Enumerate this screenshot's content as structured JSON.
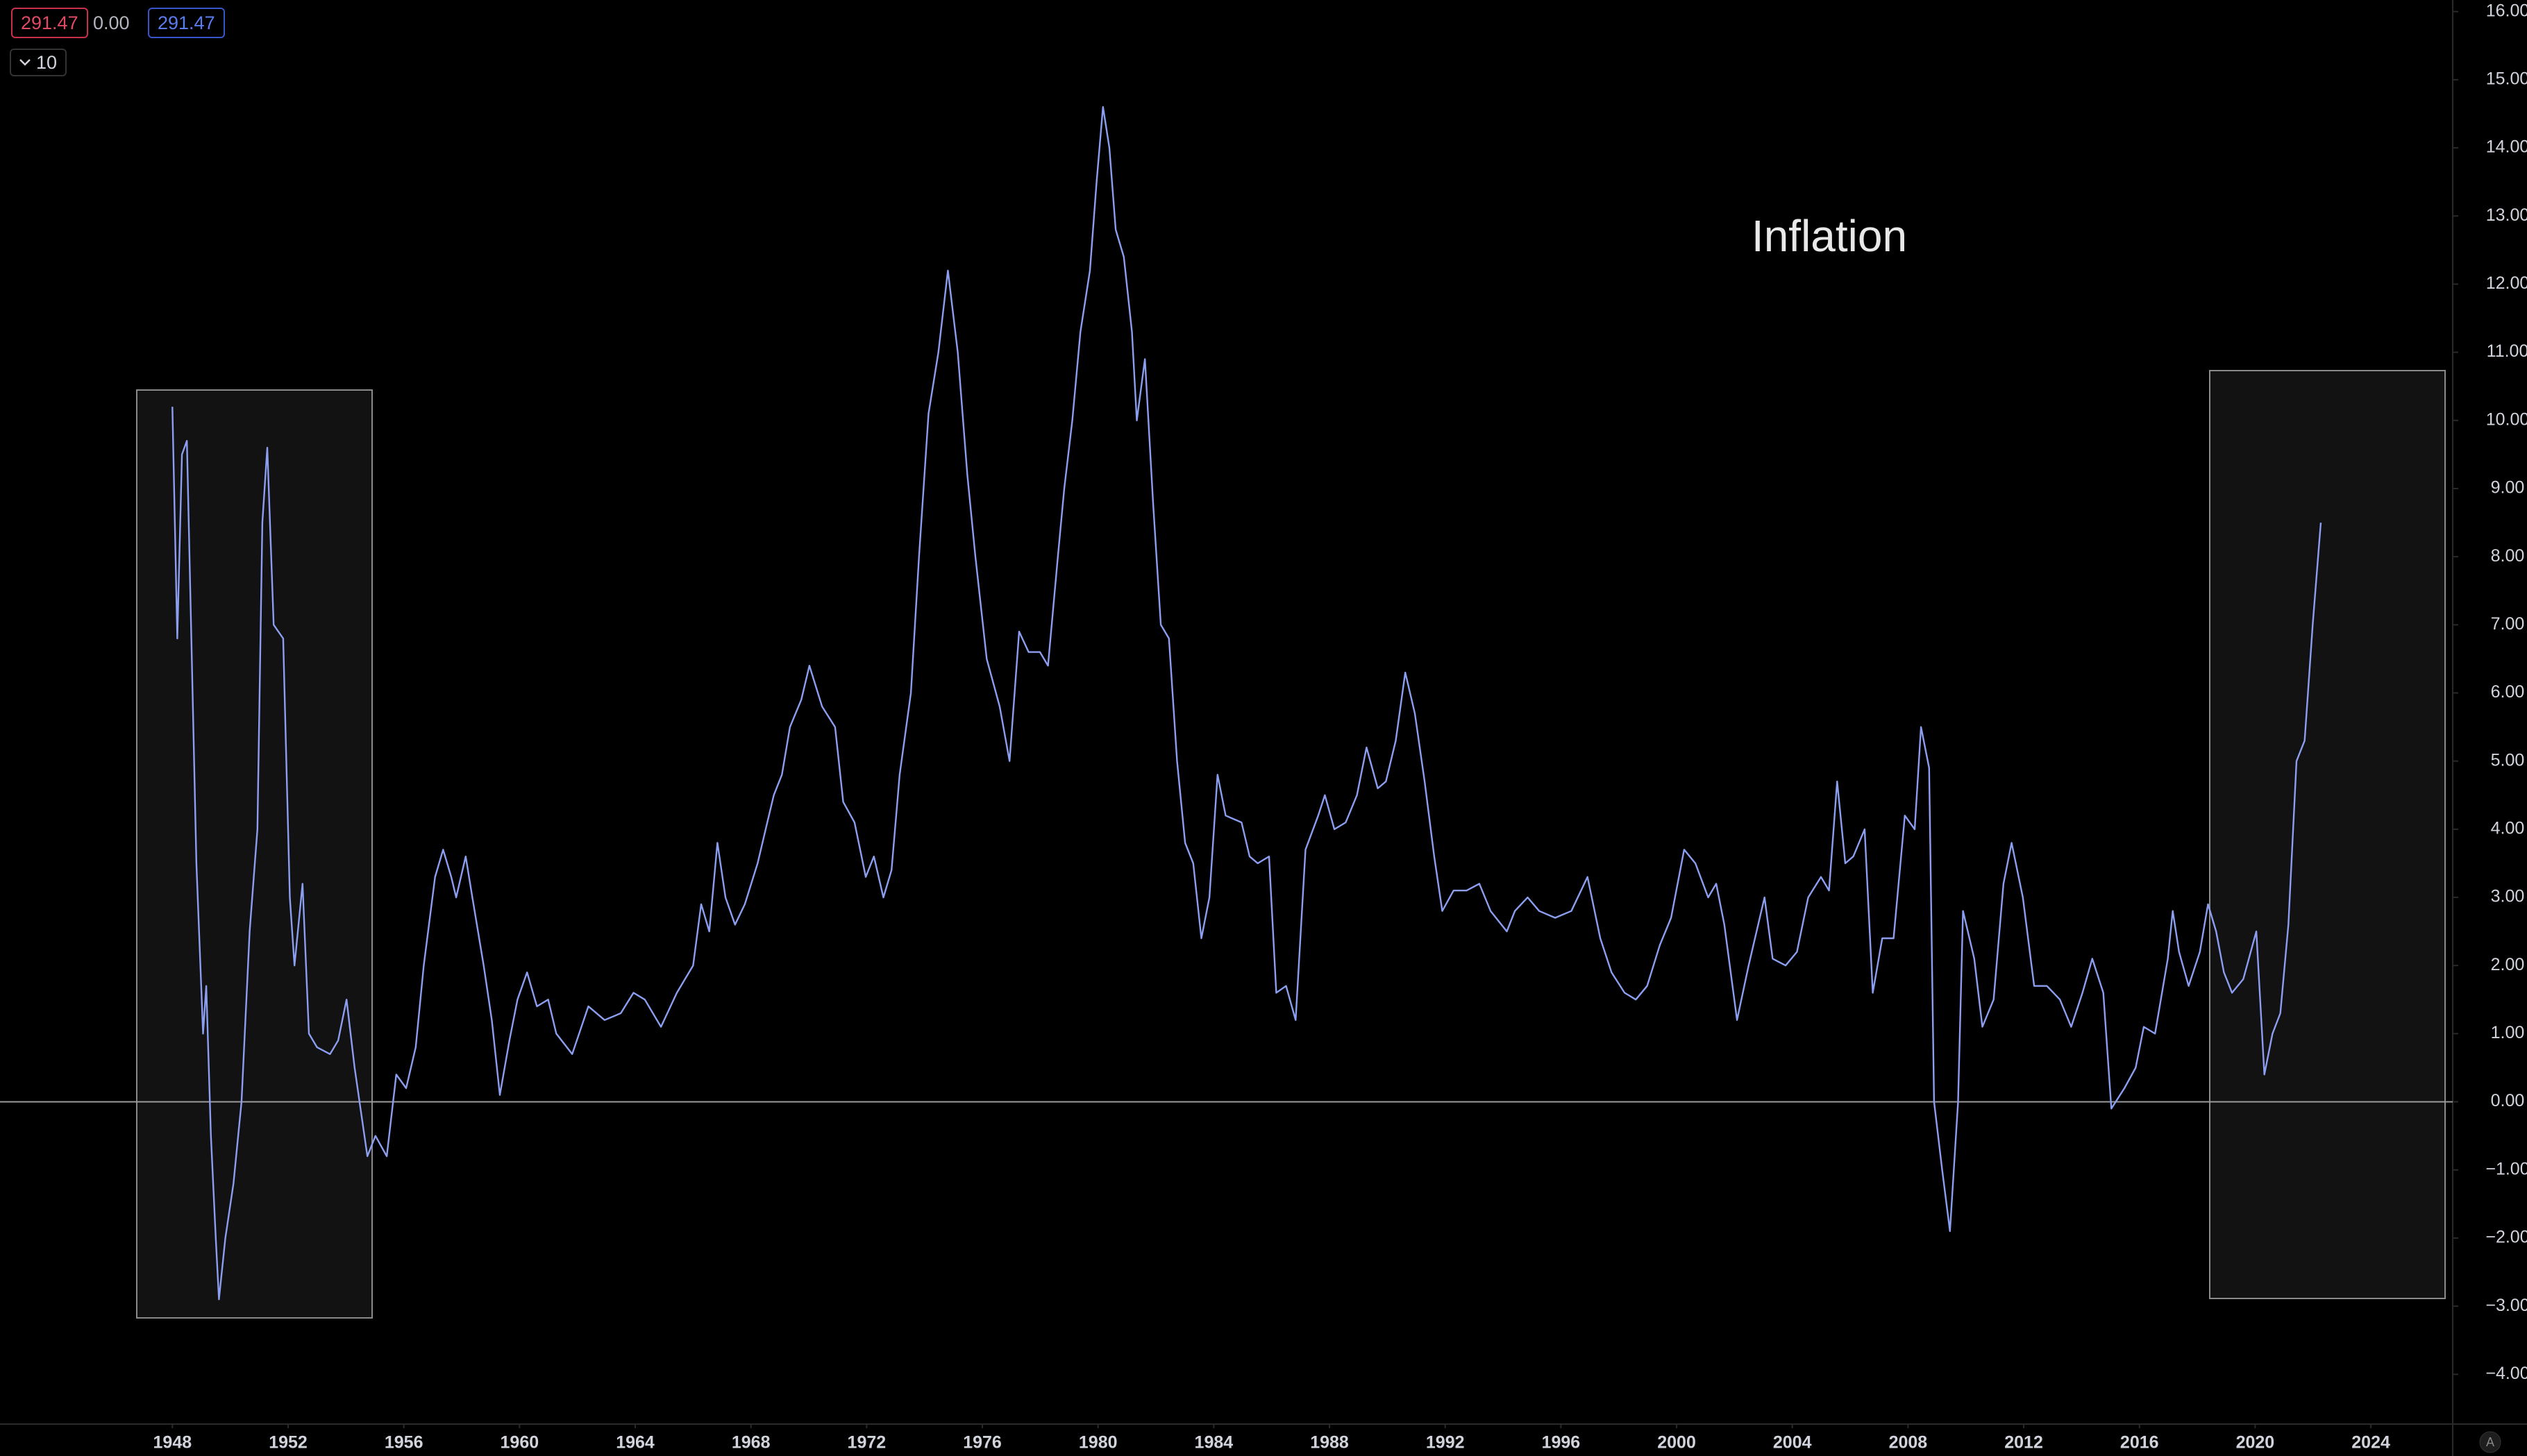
{
  "toolbar": {
    "values": [
      "291.47",
      "0.00",
      "291.47"
    ],
    "interval": "10",
    "scale_mode": "A"
  },
  "chart_data": {
    "type": "line",
    "annotation": "Inflation",
    "color": "#8c9ef0",
    "grid": false,
    "xlim": [
      1942.04,
      2026.83
    ],
    "ylim": [
      -4.73,
      16.17
    ],
    "x": [
      1948.0,
      1948.17,
      1948.33,
      1948.5,
      1948.67,
      1948.83,
      1949.06,
      1949.17,
      1949.33,
      1949.5,
      1949.61,
      1949.83,
      1950.11,
      1950.39,
      1950.67,
      1950.94,
      1951.11,
      1951.28,
      1951.5,
      1951.83,
      1952.06,
      1952.22,
      1952.5,
      1952.72,
      1953.0,
      1953.45,
      1953.73,
      1954.02,
      1954.3,
      1954.74,
      1955.02,
      1955.41,
      1955.74,
      1956.08,
      1956.41,
      1956.69,
      1957.08,
      1957.36,
      1957.64,
      1957.81,
      1958.14,
      1958.37,
      1958.76,
      1959.04,
      1959.32,
      1959.65,
      1959.93,
      1960.26,
      1960.6,
      1960.99,
      1961.27,
      1961.82,
      1962.38,
      1962.94,
      1963.5,
      1963.94,
      1964.33,
      1964.89,
      1965.44,
      1966.0,
      1966.28,
      1966.56,
      1966.84,
      1967.12,
      1967.45,
      1967.79,
      1968.23,
      1968.51,
      1968.79,
      1969.07,
      1969.35,
      1969.74,
      1970.02,
      1970.46,
      1970.91,
      1971.19,
      1971.58,
      1971.97,
      1972.25,
      1972.58,
      1972.86,
      1973.14,
      1973.53,
      1973.81,
      1974.14,
      1974.48,
      1974.81,
      1975.15,
      1975.48,
      1975.76,
      1976.15,
      1976.6,
      1976.94,
      1977.27,
      1977.6,
      1977.99,
      1978.27,
      1978.61,
      1978.83,
      1979.11,
      1979.39,
      1979.72,
      1979.95,
      1980.17,
      1980.39,
      1980.61,
      1980.89,
      1981.17,
      1981.34,
      1981.62,
      1981.9,
      1982.17,
      1982.45,
      1982.73,
      1983.01,
      1983.29,
      1983.57,
      1983.85,
      1984.13,
      1984.41,
      1984.96,
      1985.24,
      1985.52,
      1985.91,
      1986.16,
      1986.5,
      1986.83,
      1987.17,
      1987.61,
      1987.84,
      1988.17,
      1988.56,
      1988.95,
      1989.28,
      1989.67,
      1989.95,
      1990.29,
      1990.62,
      1990.95,
      1991.29,
      1991.62,
      1991.9,
      1992.29,
      1992.74,
      1993.18,
      1993.57,
      1994.13,
      1994.41,
      1994.85,
      1995.25,
      1995.8,
      1996.36,
      1996.92,
      1997.36,
      1997.75,
      1998.2,
      1998.59,
      1998.98,
      1999.42,
      1999.81,
      2000.26,
      2000.65,
      2001.09,
      2001.37,
      2001.65,
      2002.09,
      2002.49,
      2003.04,
      2003.32,
      2003.77,
      2004.16,
      2004.55,
      2004.99,
      2005.27,
      2005.55,
      2005.83,
      2006.11,
      2006.5,
      2006.78,
      2007.11,
      2007.5,
      2007.89,
      2008.23,
      2008.45,
      2008.73,
      2008.9,
      2009.18,
      2009.45,
      2009.73,
      2009.9,
      2010.29,
      2010.57,
      2010.96,
      2011.3,
      2011.58,
      2011.97,
      2012.36,
      2012.8,
      2013.25,
      2013.64,
      2014.03,
      2014.37,
      2014.75,
      2015.03,
      2015.48,
      2015.87,
      2016.15,
      2016.54,
      2016.98,
      2017.15,
      2017.37,
      2017.7,
      2018.09,
      2018.37,
      2018.65,
      2018.92,
      2019.2,
      2019.59,
      2020.04,
      2020.32,
      2020.6,
      2020.87,
      2021.15,
      2021.43,
      2021.71,
      2021.99,
      2022.27
    ],
    "values": [
      10.2,
      6.8,
      9.5,
      9.7,
      6.5,
      3.5,
      1.0,
      1.7,
      -0.5,
      -2.0,
      -2.9,
      -2.0,
      -1.2,
      0,
      2.5,
      4.0,
      8.5,
      9.6,
      7.0,
      6.8,
      3.0,
      2.0,
      3.2,
      1.0,
      0.8,
      0.7,
      0.9,
      1.5,
      0.5,
      -0.8,
      -0.5,
      -0.8,
      0.4,
      0.2,
      0.8,
      2.0,
      3.3,
      3.7,
      3.3,
      3.0,
      3.6,
      3.0,
      2.0,
      1.2,
      0.1,
      0.9,
      1.5,
      1.9,
      1.4,
      1.5,
      1.0,
      0.7,
      1.4,
      1.2,
      1.3,
      1.6,
      1.5,
      1.1,
      1.6,
      2.0,
      2.9,
      2.5,
      3.8,
      3.0,
      2.6,
      2.9,
      3.5,
      4.0,
      4.5,
      4.8,
      5.5,
      5.9,
      6.4,
      5.8,
      5.5,
      4.4,
      4.1,
      3.3,
      3.6,
      3.0,
      3.4,
      4.8,
      6.0,
      8.0,
      10.1,
      11.0,
      12.2,
      11.0,
      9.2,
      8.0,
      6.5,
      5.8,
      5.0,
      6.9,
      6.6,
      6.6,
      6.4,
      8.0,
      9.0,
      10.0,
      11.3,
      12.2,
      13.5,
      14.6,
      14.0,
      12.8,
      12.4,
      11.3,
      10.0,
      10.9,
      8.8,
      7.0,
      6.8,
      5.0,
      3.8,
      3.5,
      2.4,
      3.0,
      4.8,
      4.2,
      4.1,
      3.6,
      3.5,
      3.6,
      1.6,
      1.7,
      1.2,
      3.7,
      4.2,
      4.5,
      4.0,
      4.1,
      4.5,
      5.2,
      4.6,
      4.7,
      5.3,
      6.3,
      5.7,
      4.7,
      3.6,
      2.8,
      3.1,
      3.1,
      3.2,
      2.8,
      2.5,
      2.8,
      3.0,
      2.8,
      2.7,
      2.8,
      3.3,
      2.4,
      1.9,
      1.6,
      1.5,
      1.7,
      2.3,
      2.7,
      3.7,
      3.5,
      3.0,
      3.2,
      2.6,
      1.2,
      2.0,
      3.0,
      2.1,
      2.0,
      2.2,
      3.0,
      3.3,
      3.1,
      4.7,
      3.5,
      3.6,
      4.0,
      1.6,
      2.4,
      2.4,
      4.2,
      4.0,
      5.5,
      4.9,
      0.0,
      -1.0,
      -1.9,
      0.0,
      2.8,
      2.1,
      1.1,
      1.5,
      3.2,
      3.8,
      3.0,
      1.7,
      1.7,
      1.5,
      1.1,
      1.6,
      2.1,
      1.6,
      -0.1,
      0.2,
      0.5,
      1.1,
      1.0,
      2.1,
      2.8,
      2.2,
      1.7,
      2.2,
      2.9,
      2.5,
      1.9,
      1.6,
      1.8,
      2.5,
      0.4,
      1.0,
      1.3,
      2.6,
      5.0,
      5.3,
      7.0,
      8.5
    ],
    "xticks": [
      1948,
      1952,
      1956,
      1960,
      1964,
      1968,
      1972,
      1976,
      1980,
      1984,
      1988,
      1992,
      1996,
      2000,
      2004,
      2008,
      2012,
      2016,
      2020,
      2024
    ],
    "yticks": [
      {
        "value": 16,
        "label": "16.00"
      },
      {
        "value": 15,
        "label": "15.00"
      },
      {
        "value": 14,
        "label": "14.00"
      },
      {
        "value": 13,
        "label": "13.00"
      },
      {
        "value": 12,
        "label": "12.00"
      },
      {
        "value": 11,
        "label": "11.00"
      },
      {
        "value": 10,
        "label": "10.00"
      },
      {
        "value": 9,
        "label": "9.00"
      },
      {
        "value": 8,
        "label": "8.00"
      },
      {
        "value": 7,
        "label": "7.00"
      },
      {
        "value": 6,
        "label": "6.00"
      },
      {
        "value": 5,
        "label": "5.00"
      },
      {
        "value": 4,
        "label": "4.00"
      },
      {
        "value": 3,
        "label": "3.00"
      },
      {
        "value": 2,
        "label": "2.00"
      },
      {
        "value": 1,
        "label": "1.00"
      },
      {
        "value": 0,
        "label": "0.00"
      },
      {
        "value": -1,
        "label": "−1.00"
      },
      {
        "value": -2,
        "label": "−2.00"
      },
      {
        "value": -3,
        "label": "−3.00"
      },
      {
        "value": -4,
        "label": "−4.00"
      }
    ]
  }
}
